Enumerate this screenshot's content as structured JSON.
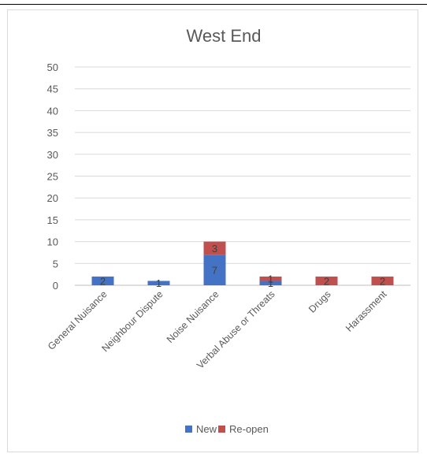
{
  "chart_data": {
    "type": "bar",
    "stacked": true,
    "title": "West End",
    "categories": [
      "General Nuisance",
      "Neighbour Dispute",
      "Noise Nuisance",
      "Verbal Abuse or Threats",
      "Drugs",
      "Harassment"
    ],
    "series": [
      {
        "name": "New",
        "color": "#4472c4",
        "values": [
          2,
          1,
          7,
          1,
          0,
          0
        ],
        "labels": [
          "2",
          "1",
          "7",
          "1",
          "",
          ""
        ]
      },
      {
        "name": "Re-open",
        "color": "#c0504d",
        "values": [
          0,
          0,
          3,
          1,
          2,
          2
        ],
        "labels": [
          "",
          "",
          "3",
          "1",
          "2",
          "2"
        ]
      }
    ],
    "yticks": [
      "0",
      "5",
      "10",
      "15",
      "20",
      "25",
      "30",
      "35",
      "40",
      "45",
      "50"
    ],
    "ylim": [
      0,
      50
    ],
    "grid": true,
    "legend_position": "bottom"
  }
}
